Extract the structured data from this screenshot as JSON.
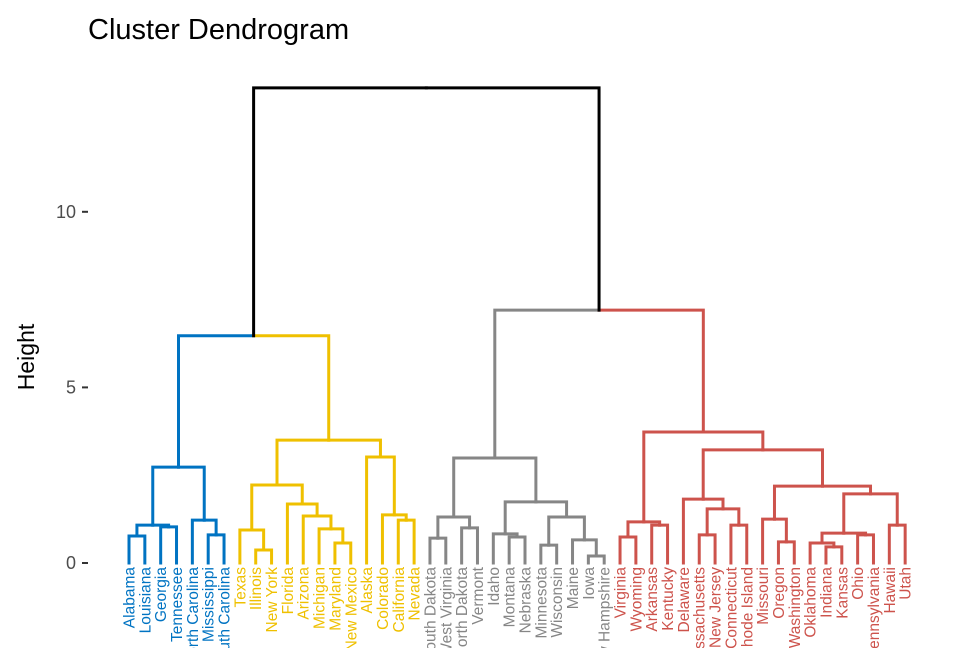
{
  "chart_data": {
    "type": "dendrogram",
    "title": "Cluster Dendrogram",
    "xlabel": "",
    "ylabel": "Height",
    "y_ticks": [
      0,
      5,
      10
    ],
    "ylim": [
      0,
      13.53
    ],
    "root": {
      "height": 13.53,
      "children": [
        {
          "height": 6.47,
          "children": [
            {
              "color": "#0073C2",
              "height": 2.73,
              "children": [
                {
                  "height": 1.08,
                  "children": [
                    {
                      "height": 0.77,
                      "children": [
                        "Alabama",
                        "Louisiana"
                      ]
                    },
                    {
                      "height": 1.03,
                      "children": [
                        "Georgia",
                        "Tennessee"
                      ]
                    }
                  ]
                },
                {
                  "height": 1.22,
                  "children": [
                    "North Carolina",
                    {
                      "height": 0.8,
                      "children": [
                        "Mississippi",
                        "South Carolina"
                      ]
                    }
                  ]
                }
              ]
            },
            {
              "color": "#EFC000",
              "height": 3.5,
              "children": [
                {
                  "height": 2.22,
                  "children": [
                    {
                      "height": 0.94,
                      "children": [
                        "Texas",
                        {
                          "height": 0.37,
                          "children": [
                            "Illinois",
                            "New York"
                          ]
                        }
                      ]
                    },
                    {
                      "height": 1.68,
                      "children": [
                        "Florida",
                        {
                          "height": 1.34,
                          "children": [
                            "Arizona",
                            {
                              "height": 0.97,
                              "children": [
                                "Michigan",
                                {
                                  "height": 0.57,
                                  "children": [
                                    "Maryland",
                                    "New Mexico"
                                  ]
                                }
                              ]
                            }
                          ]
                        }
                      ]
                    }
                  ]
                },
                {
                  "height": 3.02,
                  "children": [
                    "Alaska",
                    {
                      "height": 1.37,
                      "children": [
                        "Colorado",
                        {
                          "height": 1.22,
                          "children": [
                            "California",
                            "Nevada"
                          ]
                        }
                      ]
                    }
                  ]
                }
              ]
            }
          ]
        },
        {
          "height": 7.2,
          "children": [
            {
              "color": "#868686",
              "height": 2.99,
              "children": [
                {
                  "height": 1.31,
                  "children": [
                    {
                      "height": 0.71,
                      "children": [
                        "South Dakota",
                        "West Virginia"
                      ]
                    },
                    {
                      "height": 1.0,
                      "children": [
                        "North Dakota",
                        "Vermont"
                      ]
                    }
                  ]
                },
                {
                  "height": 1.74,
                  "children": [
                    {
                      "height": 0.83,
                      "children": [
                        "Idaho",
                        {
                          "height": 0.74,
                          "children": [
                            "Montana",
                            "Nebraska"
                          ]
                        }
                      ]
                    },
                    {
                      "height": 1.31,
                      "children": [
                        {
                          "height": 0.51,
                          "children": [
                            "Minnesota",
                            "Wisconsin"
                          ]
                        },
                        {
                          "height": 0.66,
                          "children": [
                            "Maine",
                            {
                              "height": 0.2,
                              "children": [
                                "Iowa",
                                "New Hampshire"
                              ]
                            }
                          ]
                        }
                      ]
                    }
                  ]
                }
              ]
            },
            {
              "color": "#CD534C",
              "height": 3.73,
              "children": [
                {
                  "height": 1.17,
                  "children": [
                    {
                      "height": 0.74,
                      "children": [
                        "Virginia",
                        "Wyoming"
                      ]
                    },
                    {
                      "height": 1.08,
                      "children": [
                        "Arkansas",
                        "Kentucky"
                      ]
                    }
                  ]
                },
                {
                  "height": 3.22,
                  "children": [
                    {
                      "height": 1.82,
                      "children": [
                        "Delaware",
                        {
                          "height": 1.54,
                          "children": [
                            {
                              "height": 0.8,
                              "children": [
                                "Massachusetts",
                                "New Jersey"
                              ]
                            },
                            {
                              "height": 1.08,
                              "children": [
                                "Connecticut",
                                "Rhode Island"
                              ]
                            }
                          ]
                        }
                      ]
                    },
                    {
                      "height": 2.19,
                      "children": [
                        {
                          "height": 1.25,
                          "children": [
                            "Missouri",
                            {
                              "height": 0.6,
                              "children": [
                                "Oregon",
                                "Washington"
                              ]
                            }
                          ]
                        },
                        {
                          "height": 1.97,
                          "children": [
                            {
                              "height": 0.85,
                              "children": [
                                {
                                  "height": 0.57,
                                  "children": [
                                    "Oklahoma",
                                    {
                                      "height": 0.46,
                                      "children": [
                                        "Indiana",
                                        "Kansas"
                                      ]
                                    }
                                  ]
                                },
                                {
                                  "height": 0.8,
                                  "children": [
                                    "Ohio",
                                    "Pennsylvania"
                                  ]
                                }
                              ]
                            },
                            {
                              "height": 1.08,
                              "children": [
                                "Hawaii",
                                "Utah"
                              ]
                            }
                          ]
                        }
                      ]
                    }
                  ]
                }
              ]
            }
          ]
        }
      ]
    },
    "upper_link_color": "#000000",
    "grid": false,
    "legend": "none"
  }
}
